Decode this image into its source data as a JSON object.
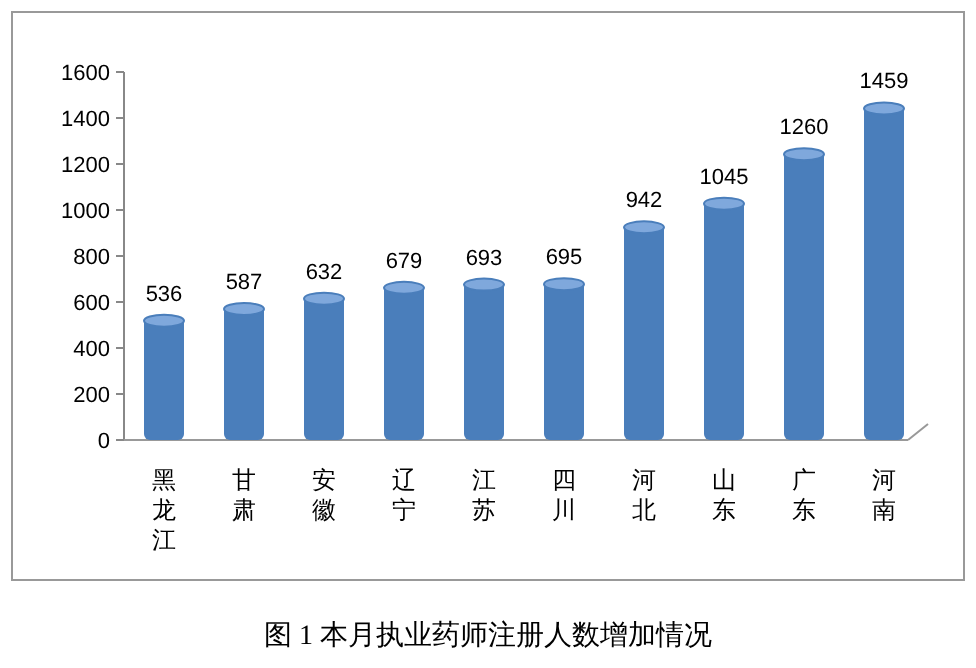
{
  "chart_data": {
    "type": "bar",
    "title": "图 1 本月执业药师注册人数增加情况",
    "categories": [
      "黑龙江",
      "甘肃",
      "安徽",
      "辽宁",
      "江苏",
      "四川",
      "河北",
      "山东",
      "广东",
      "河南"
    ],
    "values": [
      536,
      587,
      632,
      679,
      693,
      695,
      942,
      1045,
      1260,
      1459
    ],
    "color": "#4a7ebb",
    "ylim": [
      0,
      1600
    ],
    "yticks": [
      0,
      200,
      400,
      600,
      800,
      1000,
      1200,
      1400,
      1600
    ],
    "data_labels": true
  }
}
